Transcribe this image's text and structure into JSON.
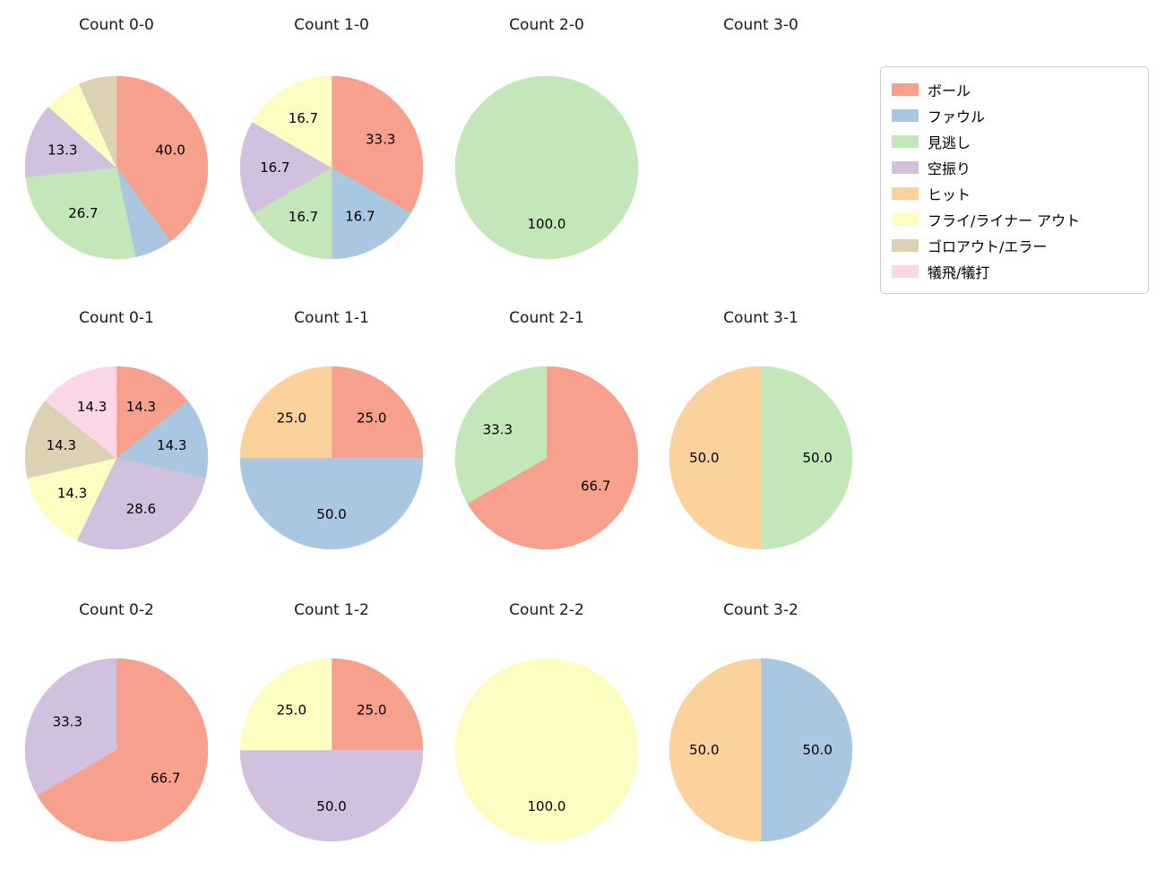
{
  "figure": {
    "background_color": "#ffffff",
    "grid_columns": 4,
    "grid_rows": 3
  },
  "legend": {
    "position": "top-right",
    "items": [
      {
        "label": "ボール",
        "color": "#f7a08e"
      },
      {
        "label": "ファウル",
        "color": "#a9c7e0"
      },
      {
        "label": "見逃し",
        "color": "#c3e7b8"
      },
      {
        "label": "空振り",
        "color": "#d2c1de"
      },
      {
        "label": "ヒット",
        "color": "#fbd29c"
      },
      {
        "label": "フライ/ライナー アウト",
        "color": "#fdfdc2"
      },
      {
        "label": "ゴロアウト/エラー",
        "color": "#dcd2b3"
      },
      {
        "label": "犠飛/犠打",
        "color": "#fbd6e9"
      }
    ]
  },
  "pie_layout": {
    "start_angle_deg": 90,
    "direction": "clockwise",
    "label_distance": 0.62
  },
  "chart_data": [
    {
      "type": "pie",
      "title": "Count 0-0",
      "slices": [
        {
          "category": "ボール",
          "value": 40.0,
          "label": "40.0"
        },
        {
          "category": "ファウル",
          "value": 6.7,
          "label": ""
        },
        {
          "category": "見逃し",
          "value": 26.7,
          "label": "26.7"
        },
        {
          "category": "空振り",
          "value": 13.3,
          "label": "13.3"
        },
        {
          "category": "フライ/ライナー アウト",
          "value": 6.7,
          "label": ""
        },
        {
          "category": "ゴロアウト/エラー",
          "value": 6.7,
          "label": ""
        }
      ]
    },
    {
      "type": "pie",
      "title": "Count 1-0",
      "slices": [
        {
          "category": "ボール",
          "value": 33.3,
          "label": "33.3"
        },
        {
          "category": "ファウル",
          "value": 16.7,
          "label": "16.7"
        },
        {
          "category": "見逃し",
          "value": 16.7,
          "label": "16.7"
        },
        {
          "category": "空振り",
          "value": 16.7,
          "label": "16.7"
        },
        {
          "category": "フライ/ライナー アウト",
          "value": 16.7,
          "label": "16.7"
        }
      ]
    },
    {
      "type": "pie",
      "title": "Count 2-0",
      "slices": [
        {
          "category": "見逃し",
          "value": 100.0,
          "label": "100.0"
        }
      ]
    },
    {
      "type": "pie",
      "title": "Count 3-0",
      "slices": []
    },
    {
      "type": "pie",
      "title": "Count 0-1",
      "slices": [
        {
          "category": "ボール",
          "value": 14.3,
          "label": "14.3"
        },
        {
          "category": "ファウル",
          "value": 14.3,
          "label": "14.3"
        },
        {
          "category": "空振り",
          "value": 28.6,
          "label": "28.6"
        },
        {
          "category": "フライ/ライナー アウト",
          "value": 14.3,
          "label": "14.3"
        },
        {
          "category": "ゴロアウト/エラー",
          "value": 14.3,
          "label": "14.3"
        },
        {
          "category": "犠飛/犠打",
          "value": 14.3,
          "label": "14.3"
        }
      ]
    },
    {
      "type": "pie",
      "title": "Count 1-1",
      "slices": [
        {
          "category": "ボール",
          "value": 25.0,
          "label": "25.0"
        },
        {
          "category": "ファウル",
          "value": 50.0,
          "label": "50.0"
        },
        {
          "category": "ヒット",
          "value": 25.0,
          "label": "25.0"
        }
      ]
    },
    {
      "type": "pie",
      "title": "Count 2-1",
      "slices": [
        {
          "category": "ボール",
          "value": 66.7,
          "label": "66.7"
        },
        {
          "category": "見逃し",
          "value": 33.3,
          "label": "33.3"
        }
      ]
    },
    {
      "type": "pie",
      "title": "Count 3-1",
      "slices": [
        {
          "category": "見逃し",
          "value": 50.0,
          "label": "50.0"
        },
        {
          "category": "ヒット",
          "value": 50.0,
          "label": "50.0"
        }
      ]
    },
    {
      "type": "pie",
      "title": "Count 0-2",
      "slices": [
        {
          "category": "ボール",
          "value": 66.7,
          "label": "66.7"
        },
        {
          "category": "空振り",
          "value": 33.3,
          "label": "33.3"
        }
      ]
    },
    {
      "type": "pie",
      "title": "Count 1-2",
      "slices": [
        {
          "category": "ボール",
          "value": 25.0,
          "label": "25.0"
        },
        {
          "category": "空振り",
          "value": 50.0,
          "label": "50.0"
        },
        {
          "category": "フライ/ライナー アウト",
          "value": 25.0,
          "label": "25.0"
        }
      ]
    },
    {
      "type": "pie",
      "title": "Count 2-2",
      "slices": [
        {
          "category": "フライ/ライナー アウト",
          "value": 100.0,
          "label": "100.0"
        }
      ]
    },
    {
      "type": "pie",
      "title": "Count 3-2",
      "slices": [
        {
          "category": "ファウル",
          "value": 50.0,
          "label": "50.0"
        },
        {
          "category": "ヒット",
          "value": 50.0,
          "label": "50.0"
        }
      ]
    }
  ]
}
